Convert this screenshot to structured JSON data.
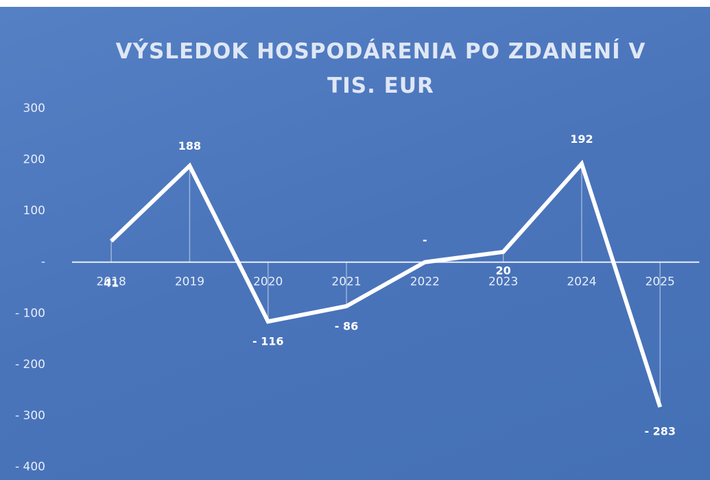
{
  "chart_data": {
    "type": "line",
    "title": "VÝSLEDOK HOSPODÁRENIA PO ZDANENÍ V TIS. EUR",
    "categories": [
      "2018",
      "2019",
      "2020",
      "2021",
      "2022",
      "2023",
      "2024",
      "2025"
    ],
    "values": [
      41,
      188,
      -116,
      -86,
      0,
      20,
      192,
      -283
    ],
    "value_labels": [
      "41",
      "188",
      "- 116",
      "- 86",
      "-",
      "20",
      "192",
      "- 283"
    ],
    "color": "#ffffff",
    "ylim": [
      -400,
      300
    ],
    "yticks": [
      300,
      200,
      100,
      {
        "value": 0,
        "label": "-"
      },
      {
        "value": -100,
        "label": "- 100"
      },
      {
        "value": -200,
        "label": "- 200"
      },
      {
        "value": -300,
        "label": "- 300"
      },
      {
        "value": -400,
        "label": "- 400"
      }
    ],
    "grid": false
  }
}
